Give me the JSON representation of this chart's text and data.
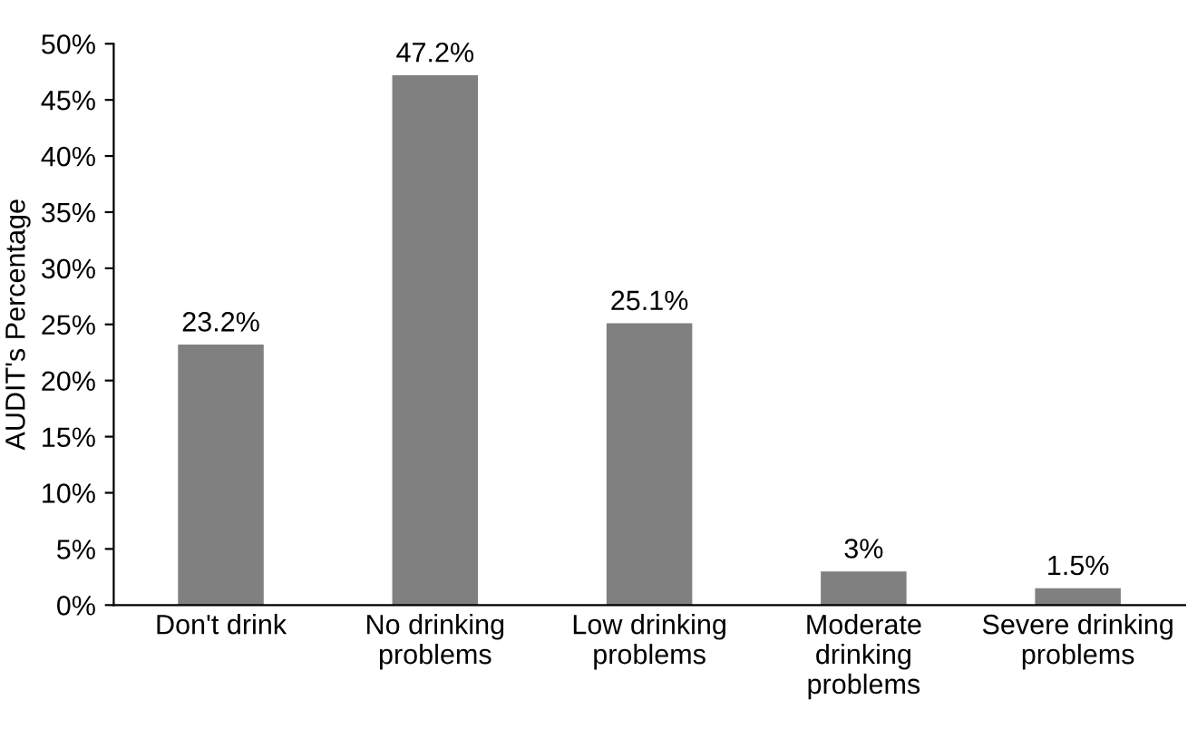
{
  "chart_data": {
    "type": "bar",
    "ylabel": "AUDIT's Percentage",
    "categories": [
      "Don't drink",
      "No drinking\nproblems",
      "Low drinking\nproblems",
      "Moderate\ndrinking\nproblems",
      "Severe drinking\nproblems"
    ],
    "values": [
      23.2,
      47.2,
      25.1,
      3,
      1.5
    ],
    "value_labels": [
      "23.2%",
      "47.2%",
      "25.1%",
      "3%",
      "1.5%"
    ],
    "color": "#808080",
    "ylim": [
      0,
      50
    ],
    "yticks": [
      {
        "value": 0,
        "label": "0%"
      },
      {
        "value": 5,
        "label": "5%"
      },
      {
        "value": 10,
        "label": "10%"
      },
      {
        "value": 15,
        "label": "15%"
      },
      {
        "value": 20,
        "label": "20%"
      },
      {
        "value": 25,
        "label": "25%"
      },
      {
        "value": 30,
        "label": "30%"
      },
      {
        "value": 35,
        "label": "35%"
      },
      {
        "value": 40,
        "label": "40%"
      },
      {
        "value": 45,
        "label": "45%"
      },
      {
        "value": 50,
        "label": "50%"
      }
    ],
    "grid": false,
    "legend": false
  }
}
